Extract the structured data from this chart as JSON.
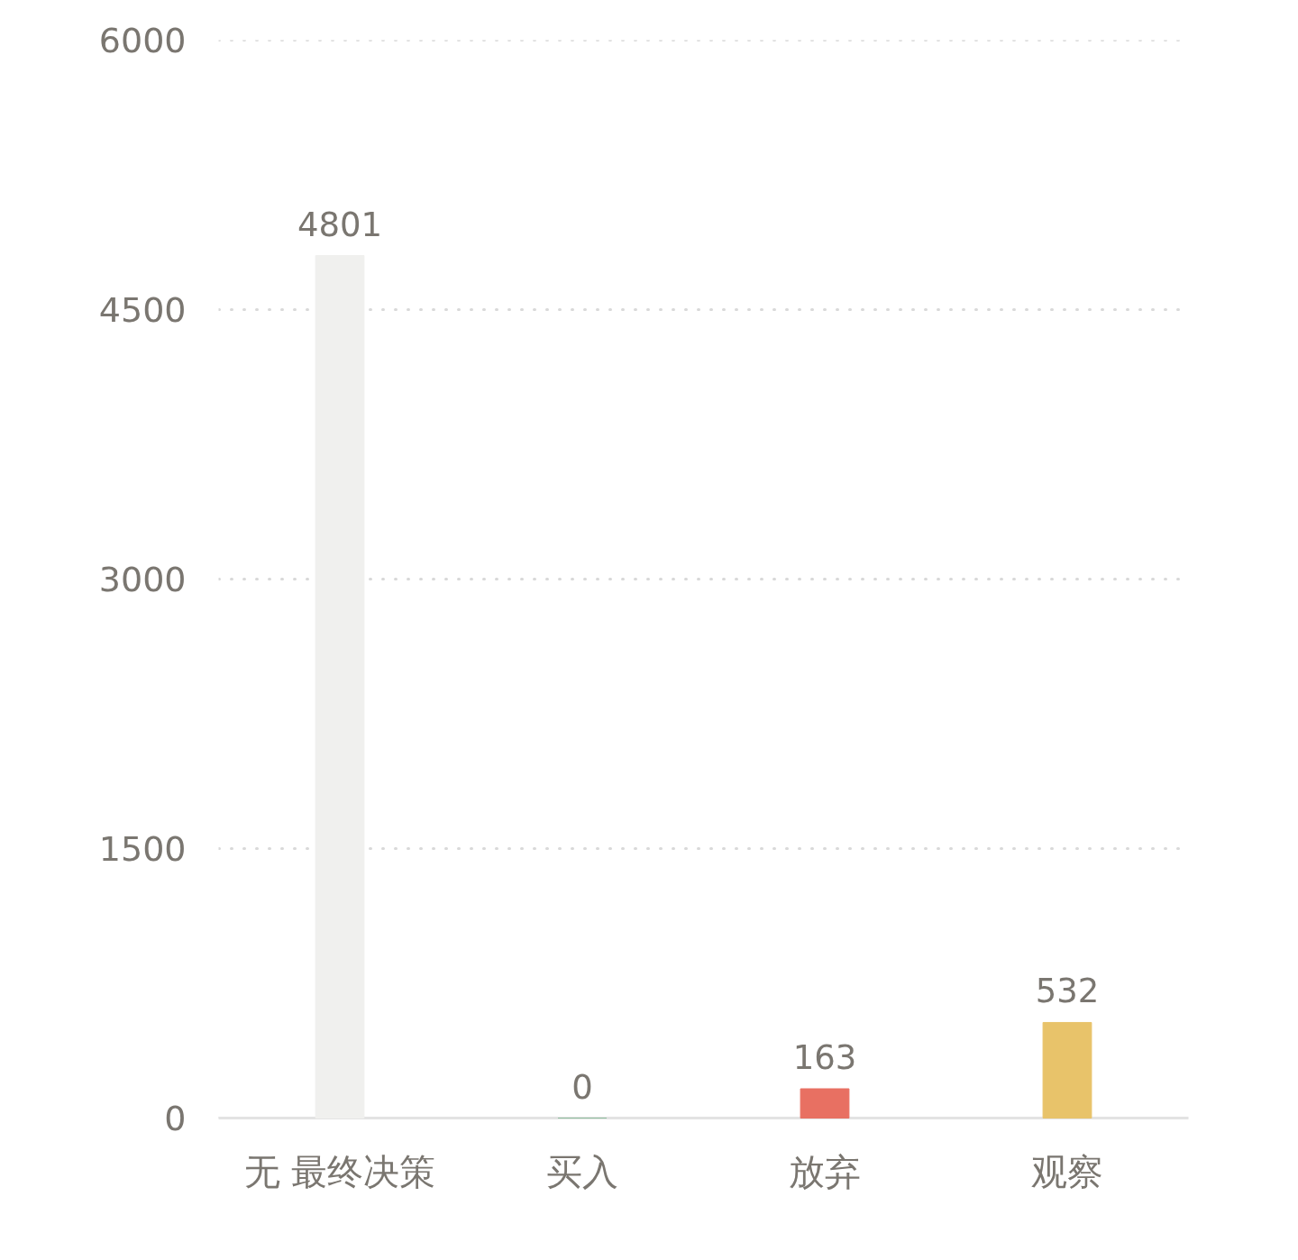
{
  "chart_data": {
    "type": "bar",
    "categories": [
      "无 最终决策",
      "买入",
      "放弃",
      "观察"
    ],
    "values": [
      4801,
      0,
      163,
      532
    ],
    "colors": [
      "#f0f0ee",
      "#8fbf9f",
      "#e87062",
      "#e8c36a"
    ],
    "ylim": [
      0,
      6000
    ],
    "yticks": [
      0,
      1500,
      3000,
      4500,
      6000
    ],
    "grid": "y",
    "data_labels": true
  }
}
